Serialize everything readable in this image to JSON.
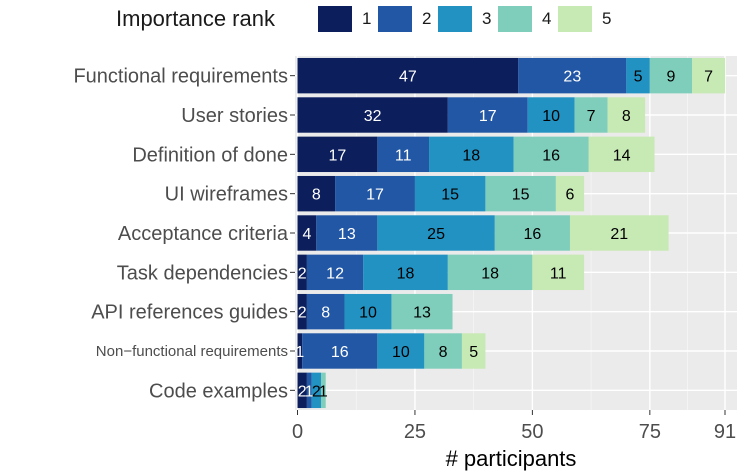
{
  "chart_data": {
    "type": "bar",
    "orientation": "horizontal",
    "stacked": true,
    "legend_title": "Importance rank",
    "legend_position": "top",
    "xlabel": "# participants",
    "ylabel": "",
    "xlim": [
      0,
      91
    ],
    "xticks": [
      0,
      25,
      50,
      75,
      91
    ],
    "grid": true,
    "categories": [
      "Functional requirements",
      "User stories",
      "Definition of done",
      "UI wireframes",
      "Acceptance criteria",
      "Task dependencies",
      "API references guides",
      "Non−functional requirements",
      "Code examples"
    ],
    "series": [
      {
        "name": "1",
        "color": "#0c1f5c",
        "label_color": "#ffffff",
        "values": [
          47,
          32,
          17,
          8,
          4,
          2,
          2,
          1,
          2
        ]
      },
      {
        "name": "2",
        "color": "#2257a5",
        "label_color": "#ffffff",
        "values": [
          23,
          17,
          11,
          17,
          13,
          12,
          8,
          16,
          1
        ]
      },
      {
        "name": "3",
        "color": "#2292c2",
        "label_color": "#000000",
        "values": [
          5,
          10,
          18,
          15,
          25,
          18,
          10,
          10,
          2
        ]
      },
      {
        "name": "4",
        "color": "#7fcdbb",
        "label_color": "#000000",
        "values": [
          9,
          7,
          16,
          15,
          16,
          18,
          13,
          8,
          1
        ]
      },
      {
        "name": "5",
        "color": "#c7e9b4",
        "label_color": "#000000",
        "values": [
          7,
          8,
          14,
          6,
          21,
          11,
          0,
          5,
          0
        ]
      }
    ]
  }
}
